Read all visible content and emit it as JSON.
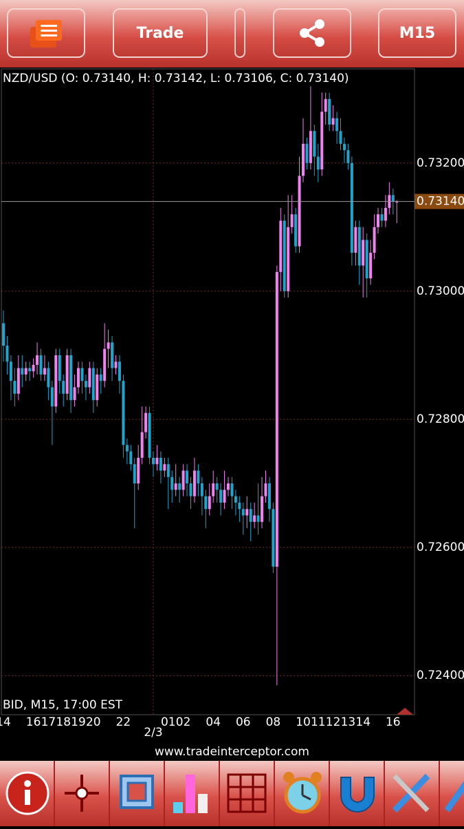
{
  "toolbar": {
    "trade": "Trade",
    "timeframe": "M15"
  },
  "footer": {
    "website": "www.tradeinterceptor.com"
  },
  "chart_data": {
    "type": "candlestick",
    "title": "NZD/USD (O: 0.73140, H: 0.73142, L: 0.73106, C: 0.73140)",
    "subtitle": "BID, M15, 17:00 EST",
    "up_color": "#ee82ee",
    "down_color": "#1ea5cc",
    "grid": true,
    "grid_color": "#7a2a22",
    "ylim": [
      0.72339,
      0.73347
    ],
    "yticks": [
      {
        "value": 0.724,
        "label": "0.72400"
      },
      {
        "value": 0.726,
        "label": "0.72600"
      },
      {
        "value": 0.728,
        "label": "0.72800"
      },
      {
        "value": 0.73,
        "label": "0.73000"
      },
      {
        "value": 0.732,
        "label": "0.73200"
      }
    ],
    "last_price": {
      "value": 0.7314,
      "label": "0.73140"
    },
    "categories": [
      "14",
      null,
      null,
      null,
      null,
      null,
      null,
      null,
      "16",
      null,
      null,
      null,
      "17",
      null,
      null,
      null,
      "18",
      null,
      null,
      null,
      "19",
      null,
      null,
      null,
      "20",
      null,
      null,
      null,
      null,
      null,
      null,
      null,
      "22",
      null,
      null,
      null,
      null,
      null,
      null,
      null,
      "2/3",
      null,
      null,
      null,
      "01",
      null,
      null,
      null,
      "02",
      null,
      null,
      null,
      null,
      null,
      null,
      null,
      "04",
      null,
      null,
      null,
      null,
      null,
      null,
      null,
      "06",
      null,
      null,
      null,
      null,
      null,
      null,
      null,
      "08",
      null,
      null,
      null,
      null,
      null,
      null,
      null,
      "10",
      null,
      null,
      null,
      "11",
      null,
      null,
      null,
      "12",
      null,
      null,
      null,
      "13",
      null,
      null,
      null,
      "14",
      null,
      null,
      null,
      null,
      null,
      null,
      null,
      "16",
      null
    ],
    "open": [
      0.7295,
      0.72915,
      0.7289,
      0.7286,
      0.7284,
      0.7288,
      0.7287,
      0.7288,
      0.72875,
      0.72885,
      0.729,
      0.7287,
      0.7288,
      0.7285,
      0.7282,
      0.729,
      0.7286,
      0.7284,
      0.729,
      0.7283,
      0.7285,
      0.7288,
      0.7286,
      0.7285,
      0.7288,
      0.7283,
      0.7287,
      0.7286,
      0.7291,
      0.7292,
      0.7288,
      0.7289,
      0.7286,
      0.7276,
      0.7275,
      0.7273,
      0.727,
      0.7274,
      0.7278,
      0.7281,
      0.7274,
      0.7273,
      0.7274,
      0.7272,
      0.7273,
      0.7271,
      0.7269,
      0.727,
      0.7269,
      0.7272,
      0.727,
      0.7268,
      0.7272,
      0.727,
      0.7268,
      0.7266,
      0.7268,
      0.727,
      0.7269,
      0.7267,
      0.7269,
      0.727,
      0.7268,
      0.7267,
      0.7266,
      0.7265,
      0.7266,
      0.7264,
      0.7265,
      0.7264,
      0.7268,
      0.727,
      0.7266,
      0.7257,
      0.7303,
      0.7311,
      0.73,
      0.731,
      0.7312,
      0.7307,
      0.7318,
      0.7323,
      0.732,
      0.7325,
      0.7321,
      0.7319,
      0.7328,
      0.733,
      0.7326,
      0.7327,
      0.7325,
      0.7323,
      0.7322,
      0.732,
      0.7306,
      0.731,
      0.7304,
      0.7308,
      0.7302,
      0.7306,
      0.731,
      0.7312,
      0.7311,
      0.7313,
      0.7315,
      0.7314
    ],
    "high": [
      0.7297,
      0.7293,
      0.729,
      0.7288,
      0.729,
      0.729,
      0.7289,
      0.7289,
      0.72895,
      0.7292,
      0.7291,
      0.729,
      0.7289,
      0.7286,
      0.7291,
      0.7291,
      0.7287,
      0.7291,
      0.7291,
      0.7287,
      0.7289,
      0.7289,
      0.7287,
      0.7289,
      0.7289,
      0.7288,
      0.7288,
      0.7295,
      0.7294,
      0.7293,
      0.729,
      0.729,
      0.7287,
      0.7277,
      0.7276,
      0.7274,
      0.7276,
      0.7282,
      0.7282,
      0.7282,
      0.7275,
      0.7276,
      0.7275,
      0.7274,
      0.7274,
      0.7272,
      0.7273,
      0.7271,
      0.7273,
      0.7273,
      0.7271,
      0.7274,
      0.7273,
      0.7271,
      0.7269,
      0.727,
      0.7272,
      0.7271,
      0.727,
      0.7272,
      0.7271,
      0.7271,
      0.7269,
      0.7268,
      0.7267,
      0.7268,
      0.7267,
      0.7267,
      0.727,
      0.7271,
      0.7272,
      0.7271,
      0.7267,
      0.7304,
      0.7313,
      0.7312,
      0.7315,
      0.7315,
      0.7313,
      0.7321,
      0.7327,
      0.7324,
      0.7332,
      0.7326,
      0.7323,
      0.7331,
      0.7331,
      0.7331,
      0.7329,
      0.7328,
      0.7327,
      0.7324,
      0.7323,
      0.7321,
      0.7311,
      0.7311,
      0.731,
      0.7309,
      0.7308,
      0.7312,
      0.7313,
      0.7313,
      0.7315,
      0.7317,
      0.7316,
      0.73142
    ],
    "low": [
      0.7289,
      0.7287,
      0.7283,
      0.7282,
      0.7283,
      0.7285,
      0.7286,
      0.7286,
      0.72865,
      0.7287,
      0.7286,
      0.7286,
      0.7283,
      0.7276,
      0.7281,
      0.7284,
      0.7282,
      0.7283,
      0.7281,
      0.7282,
      0.7284,
      0.7284,
      0.7283,
      0.7284,
      0.7281,
      0.7282,
      0.7284,
      0.7285,
      0.7288,
      0.7286,
      0.7287,
      0.7284,
      0.7274,
      0.7273,
      0.7272,
      0.7263,
      0.7269,
      0.7273,
      0.7277,
      0.7273,
      0.7271,
      0.7272,
      0.727,
      0.7271,
      0.7266,
      0.7267,
      0.7268,
      0.7267,
      0.7268,
      0.7268,
      0.7266,
      0.7267,
      0.7268,
      0.7265,
      0.7263,
      0.7265,
      0.7267,
      0.7267,
      0.7265,
      0.7266,
      0.7268,
      0.7266,
      0.7265,
      0.7264,
      0.7262,
      0.7263,
      0.7261,
      0.7263,
      0.7262,
      0.7263,
      0.7267,
      0.7264,
      0.7256,
      0.72385,
      0.73,
      0.7299,
      0.7299,
      0.7309,
      0.7306,
      0.7306,
      0.7317,
      0.7319,
      0.7319,
      0.7318,
      0.7317,
      0.7318,
      0.7326,
      0.7325,
      0.7325,
      0.7323,
      0.7322,
      0.732,
      0.7319,
      0.7304,
      0.7304,
      0.7301,
      0.7299,
      0.7299,
      0.7301,
      0.7305,
      0.7309,
      0.731,
      0.731,
      0.7312,
      0.7312,
      0.73106
    ],
    "close": [
      0.72915,
      0.7289,
      0.7286,
      0.7284,
      0.7288,
      0.7287,
      0.7288,
      0.72875,
      0.72885,
      0.729,
      0.7287,
      0.7288,
      0.7285,
      0.7282,
      0.729,
      0.7286,
      0.7284,
      0.729,
      0.7283,
      0.7285,
      0.7288,
      0.7286,
      0.7285,
      0.7288,
      0.7283,
      0.7287,
      0.7286,
      0.7291,
      0.7292,
      0.7288,
      0.7289,
      0.7286,
      0.7276,
      0.7275,
      0.7273,
      0.727,
      0.7274,
      0.7278,
      0.7281,
      0.7274,
      0.7273,
      0.7274,
      0.7272,
      0.7273,
      0.7271,
      0.7269,
      0.727,
      0.7269,
      0.7272,
      0.727,
      0.7268,
      0.7272,
      0.727,
      0.7268,
      0.7266,
      0.7268,
      0.727,
      0.7269,
      0.7267,
      0.7269,
      0.727,
      0.7268,
      0.7267,
      0.7266,
      0.7265,
      0.7266,
      0.7264,
      0.7265,
      0.7264,
      0.7268,
      0.727,
      0.7266,
      0.7257,
      0.7303,
      0.7311,
      0.73,
      0.731,
      0.7312,
      0.7307,
      0.7318,
      0.7323,
      0.732,
      0.7325,
      0.7321,
      0.7319,
      0.7328,
      0.733,
      0.7326,
      0.7327,
      0.7325,
      0.7323,
      0.7322,
      0.732,
      0.7306,
      0.731,
      0.7304,
      0.7308,
      0.7302,
      0.7306,
      0.731,
      0.7312,
      0.7311,
      0.7313,
      0.7315,
      0.7314,
      0.7314
    ]
  }
}
